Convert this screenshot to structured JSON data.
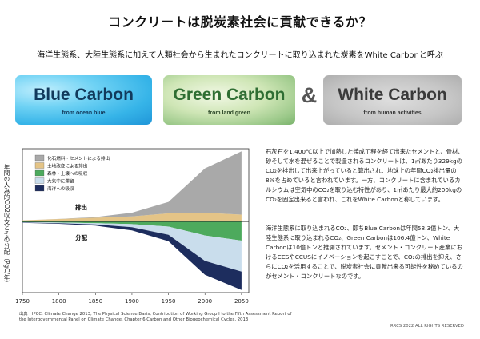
{
  "title": "コンクリートは脱炭素社会に貢献できるか？",
  "subtitle": "海洋生態系、大陸生態系に加えて人類社会から生まれたコンクリートに取り込まれた炭素をWhite Carbonと呼ぶ",
  "cards": [
    {
      "name": "Blue Carbon",
      "sub": "from ocean blue"
    },
    {
      "name": "Green Carbon",
      "sub": "from land green"
    },
    {
      "name": "White Carbon",
      "sub": "from human activities"
    }
  ],
  "amp": "&",
  "chart": {
    "ylabel": "年間の人為的CO2収支とその分配（PgC/年）",
    "legend": [
      "化石燃料・セメントによる排出",
      "土地改変による排出",
      "森林・土壌への吸収",
      "大気中に滞留",
      "海洋への吸収"
    ],
    "legend_colors": [
      "#a9a9a9",
      "#e4c487",
      "#4daa5d",
      "#c9ddec",
      "#1d2d5e"
    ],
    "label_emission": "排出",
    "label_sink": "分配",
    "xticks": [
      "1750",
      "1800",
      "1850",
      "1900",
      "1950",
      "2000",
      "2050"
    ]
  },
  "chart_data": {
    "type": "area",
    "x": [
      1750,
      1800,
      1850,
      1900,
      1950,
      2000,
      2050
    ],
    "xlim": [
      1750,
      2060
    ],
    "series": [
      {
        "name": "化石燃料・セメントによる排出",
        "values": [
          0,
          0.02,
          0.1,
          0.6,
          1.8,
          7.0,
          10.0
        ]
      },
      {
        "name": "土地改変による排出",
        "values": [
          0.2,
          0.4,
          0.6,
          0.8,
          1.3,
          1.4,
          1.1
        ]
      },
      {
        "name": "森林・土壌への吸収",
        "values": [
          -0.1,
          -0.15,
          -0.25,
          -0.4,
          -0.8,
          -2.2,
          -3.0
        ]
      },
      {
        "name": "大気中に滞留",
        "values": [
          -0.05,
          -0.1,
          -0.2,
          -0.5,
          -1.3,
          -4.0,
          -4.9
        ]
      },
      {
        "name": "海洋への吸収",
        "values": [
          -0.05,
          -0.1,
          -0.2,
          -0.5,
          -1.0,
          -2.2,
          -2.9
        ]
      }
    ]
  },
  "para1": "石灰石を1,400℃以上で加熱した焼成工程を経て出来たセメントと、骨材、砂そして水を混ぜることで製造されるコンクリートは、1㎥あたり329kgのCO₂を排出して出来上がっていると算出され、地球上の年間CO₂排出量の8%を占めていると言われています。一方、コンクリートに含まれているカルシウムは空気中のCO₂を取り込む特性があり、1㎥あたり最大約200kgのCO₂を固定出来ると言われ、これをWhite Carbonと称しています。",
  "para2": "海洋生態系に取り込まれるCO₂、即ちBlue Carbonは年間58.3億トン、大陸生態系に取り込まれるCO₂、Green Carbonは106.4億トン、White Carbonは10億トンと推測されています。セメント・コンクリート産業におけるCCSやCCUSにイノベーションを起こすことで、CO₂の排出を抑え、さらにCO₂を活用することで、脱炭素社会に貢献出来る可能性を秘めているのがセメント・コンクリートなのです。",
  "source": "出典　IPCC: Climate Change 2013, The Physical Science Basis, Contribution of Working Group I to the Fifth Assessment Report of the Intergovernmental Panel on Climate Change, Chapter 6 Carbon and Other Biogeochemical Cycles, 2013",
  "copyright": "RRCS 2022 ALL RIGHTS RESERVED"
}
